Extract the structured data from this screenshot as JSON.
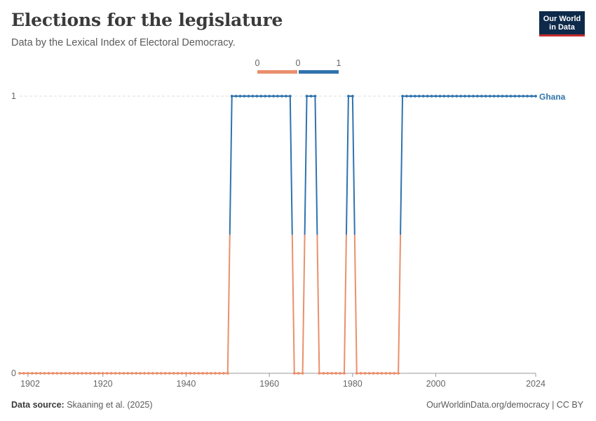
{
  "header": {
    "title": "Elections for the legislature",
    "subtitle": "Data by the Lexical Index of Electoral Democracy."
  },
  "logo": {
    "line1": "Our World",
    "line2": "in Data"
  },
  "footer": {
    "source_label": "Data source:",
    "source_text": "Skaaning et al. (2025)",
    "right_text": "OurWorldinData.org/democracy | CC BY"
  },
  "colors": {
    "low": "#e9906c",
    "high": "#2f73ad",
    "grid": "#dddddd",
    "axis": "#666666"
  },
  "chart_data": {
    "type": "line",
    "title": "Elections for the legislature",
    "subtitle": "Data by the Lexical Index of Electoral Democracy.",
    "xlim": [
      1900,
      2024
    ],
    "ylim": [
      0,
      1
    ],
    "x_ticks": [
      1902,
      1920,
      1940,
      1960,
      1980,
      2000,
      2024
    ],
    "y_ticks": [
      0,
      1
    ],
    "color_legend": {
      "labels": [
        "0",
        "0",
        "1"
      ],
      "position": "top-center"
    },
    "grid": "horizontal dashed at 1",
    "series": [
      {
        "name": "Ghana",
        "segments": [
          {
            "x_start": 1900,
            "x_end": 1950,
            "value": 0
          },
          {
            "x_start": 1951,
            "x_end": 1965,
            "value": 1
          },
          {
            "x_start": 1966,
            "x_end": 1968,
            "value": 0
          },
          {
            "x_start": 1969,
            "x_end": 1971,
            "value": 1
          },
          {
            "x_start": 1972,
            "x_end": 1978,
            "value": 0
          },
          {
            "x_start": 1979,
            "x_end": 1980,
            "value": 1
          },
          {
            "x_start": 1981,
            "x_end": 1991,
            "value": 0
          },
          {
            "x_start": 1992,
            "x_end": 2024,
            "value": 1
          }
        ]
      }
    ]
  }
}
